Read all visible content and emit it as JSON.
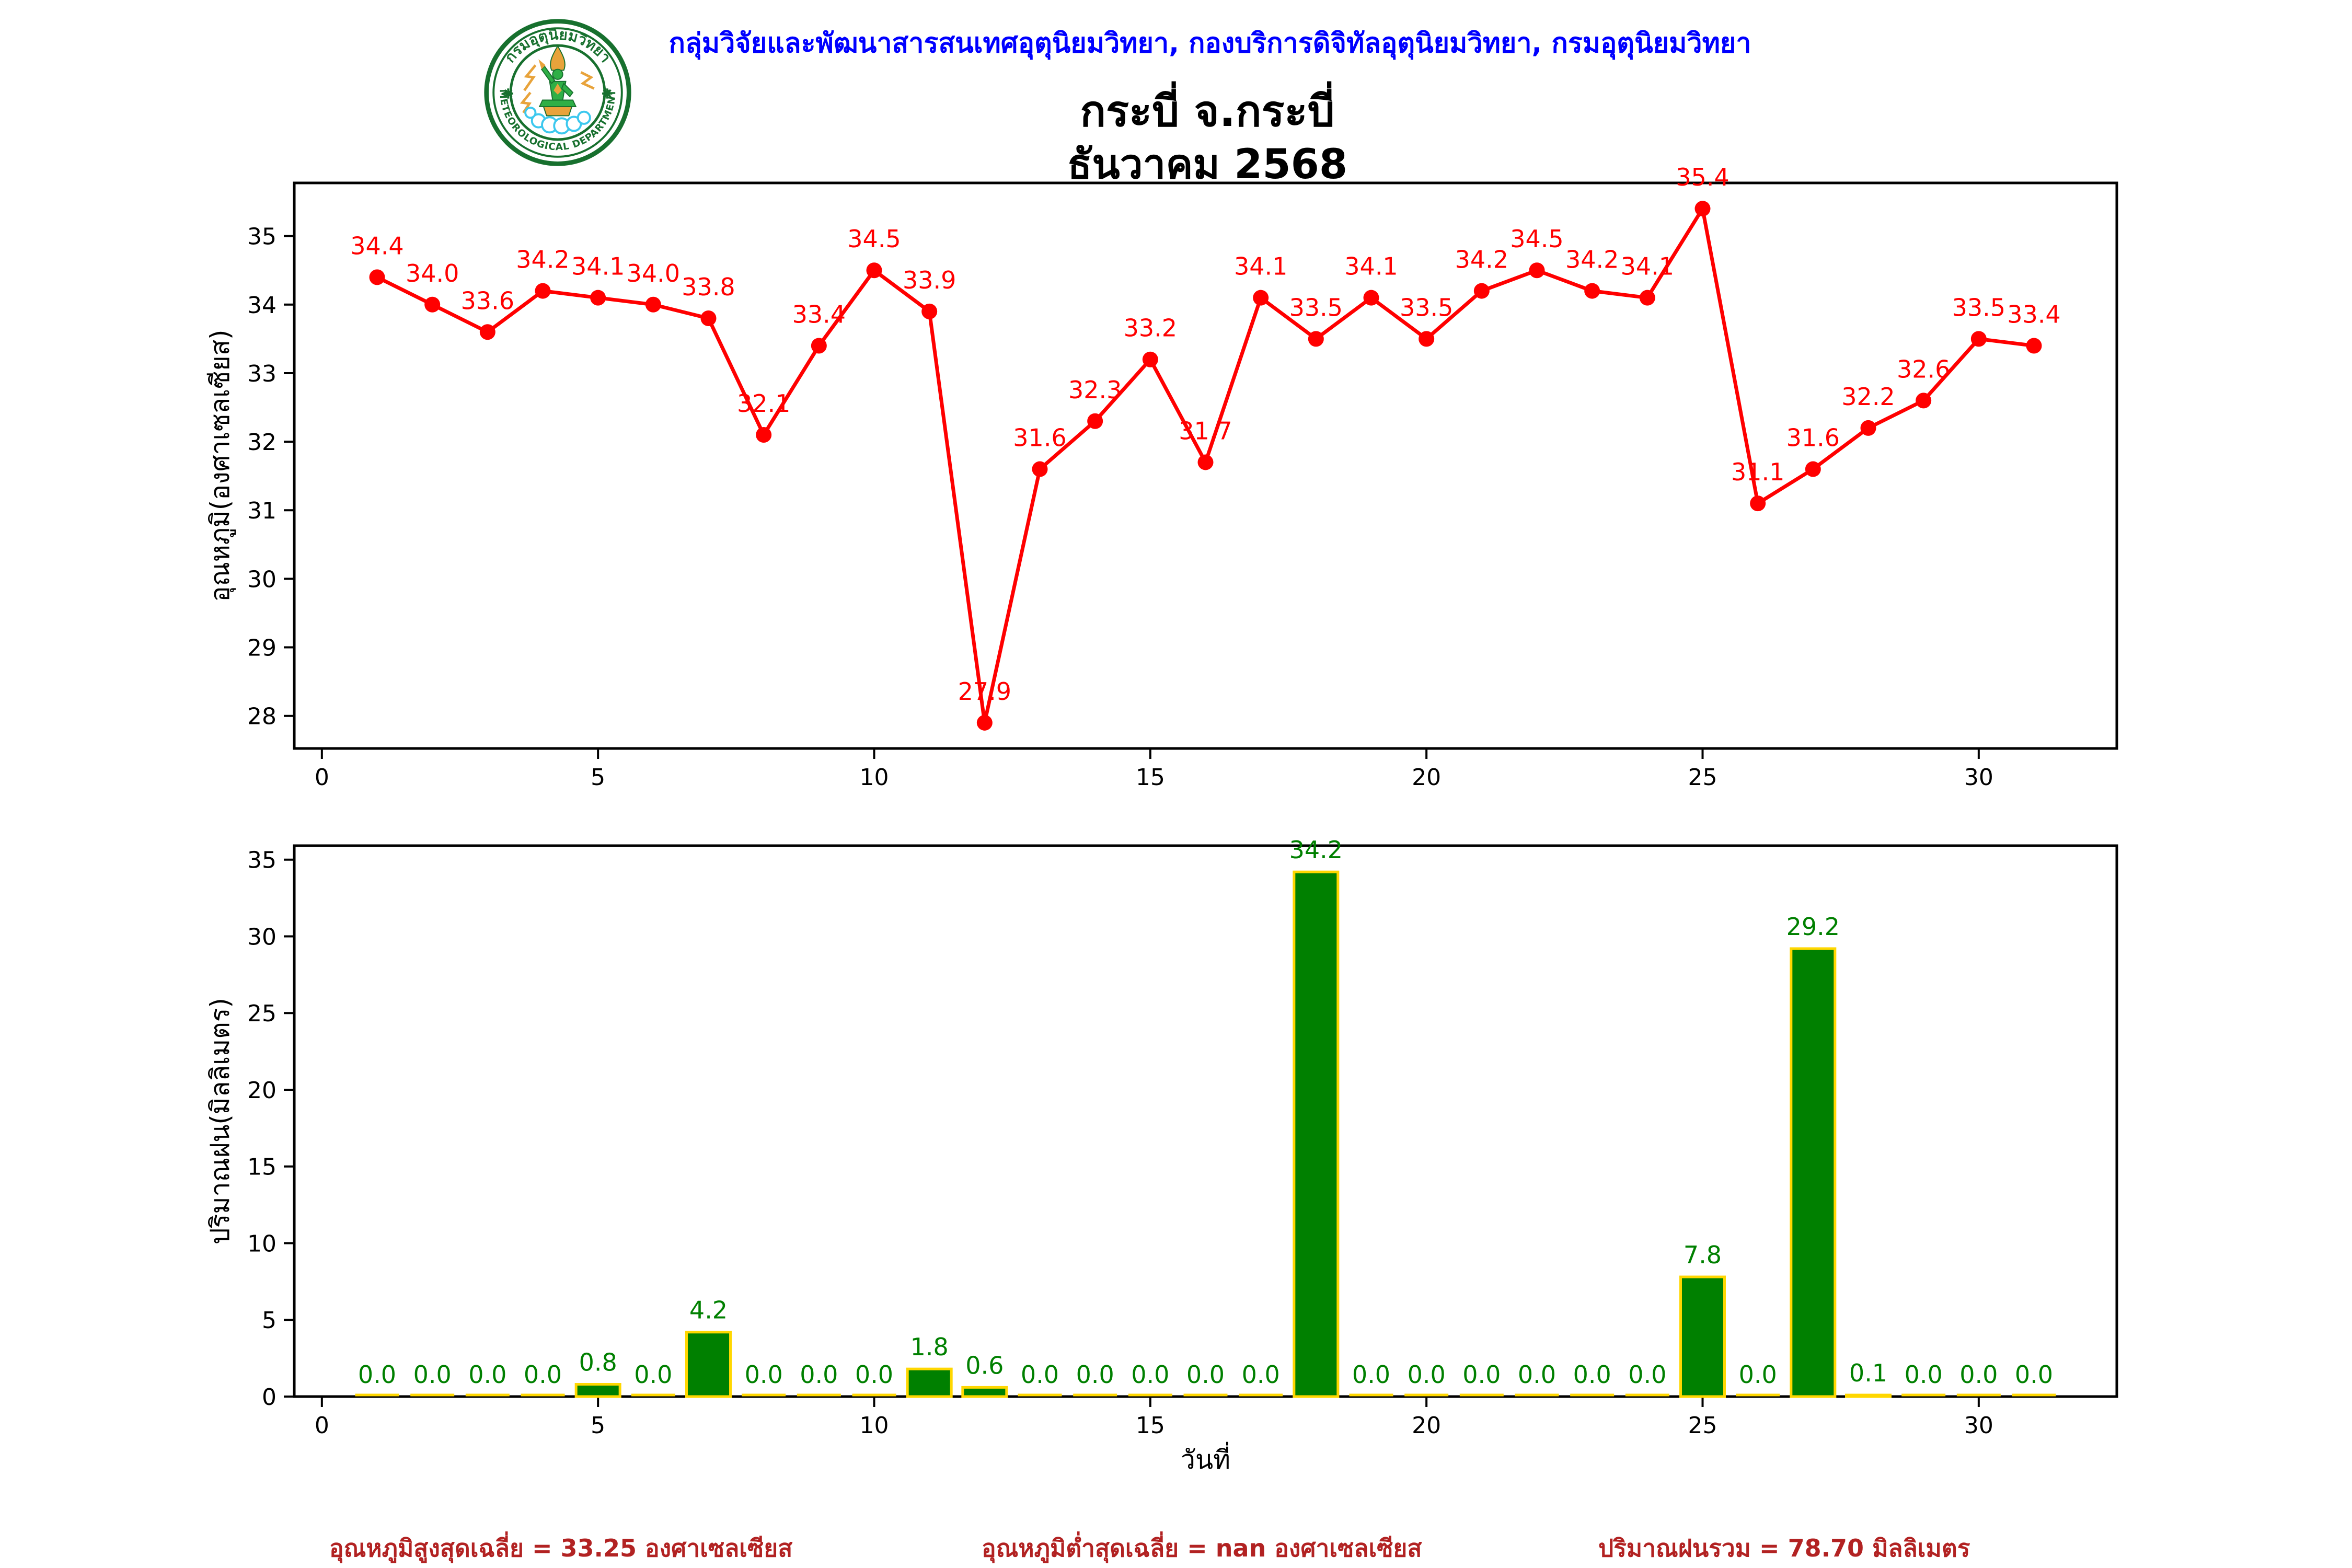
{
  "header": {
    "org_line": "กลุ่มวิจัยและพัฒนาสารสนเทศอุตุนิยมวิทยา, กองบริการดิจิทัลอุตุนิยมวิทยา, กรมอุตุนิยมวิทยา",
    "title_line1": "กระบี่ จ.กระบี่",
    "title_line2": "ธันวาคม 2568"
  },
  "logo": {
    "thai_arc_text": "กรมอุตุนิยมวิทยา",
    "english_arc_text": "METEOROLOGICAL DEPARTMENT"
  },
  "summary": {
    "avg_max_temp": "อุณหภูมิสูงสุดเฉลี่ย = 33.25 องศาเซลเซียส",
    "avg_min_temp": "อุณหภูมิต่ำสุดเฉลี่ย = nan องศาเซลเซียส",
    "total_rain": "ปริมาณฝนรวม = 78.70 มิลลิเมตร"
  },
  "colors": {
    "temp_line": "#ff0000",
    "temp_label": "#ff0000",
    "rain_bar_fill": "#008000",
    "rain_bar_edge": "#ffd700",
    "rain_label": "#008000",
    "header_text": "#0000ff",
    "summary_text": "#b22222",
    "axis": "#000000",
    "seal_green": "#17702e",
    "seal_gold": "#e8a33b",
    "seal_cloud": "#3cc8ee"
  },
  "chart_data": [
    {
      "type": "line",
      "name": "daily-max-temperature",
      "x": [
        1,
        2,
        3,
        4,
        5,
        6,
        7,
        8,
        9,
        10,
        11,
        12,
        13,
        14,
        15,
        16,
        17,
        18,
        19,
        20,
        21,
        22,
        23,
        24,
        25,
        26,
        27,
        28,
        29,
        30,
        31
      ],
      "values": [
        34.4,
        34.0,
        33.6,
        34.2,
        34.1,
        34.0,
        33.8,
        32.1,
        33.4,
        34.5,
        33.9,
        27.9,
        31.6,
        32.3,
        33.2,
        31.7,
        34.1,
        33.5,
        34.1,
        33.5,
        34.2,
        34.5,
        34.2,
        34.1,
        35.4,
        31.1,
        31.6,
        32.2,
        32.6,
        33.5,
        33.4
      ],
      "xlabel": "",
      "ylabel": "อุณหภูมิ(องศาเซลเซียส)",
      "xlim": [
        -0.5,
        32.5
      ],
      "ylim": [
        27.525,
        35.775
      ],
      "xticks": [
        0,
        5,
        10,
        15,
        20,
        25,
        30
      ],
      "yticks": [
        28,
        29,
        30,
        31,
        32,
        33,
        34,
        35
      ],
      "grid": false,
      "legend": null,
      "color": "#ff0000",
      "label_color": "#ff0000"
    },
    {
      "type": "bar",
      "name": "daily-rainfall",
      "x": [
        1,
        2,
        3,
        4,
        5,
        6,
        7,
        8,
        9,
        10,
        11,
        12,
        13,
        14,
        15,
        16,
        17,
        18,
        19,
        20,
        21,
        22,
        23,
        24,
        25,
        26,
        27,
        28,
        29,
        30,
        31
      ],
      "values": [
        0.0,
        0.0,
        0.0,
        0.0,
        0.8,
        0.0,
        4.2,
        0.0,
        0.0,
        0.0,
        1.8,
        0.6,
        0.0,
        0.0,
        0.0,
        0.0,
        0.0,
        34.2,
        0.0,
        0.0,
        0.0,
        0.0,
        0.0,
        0.0,
        7.8,
        0.0,
        29.2,
        0.1,
        0.0,
        0.0,
        0.0
      ],
      "xlabel": "วันที่",
      "ylabel": "ปริมาณฝน(มิลลิเมตร)",
      "xlim": [
        -0.5,
        32.5
      ],
      "ylim": [
        0,
        35.91
      ],
      "xticks": [
        0,
        5,
        10,
        15,
        20,
        25,
        30
      ],
      "yticks": [
        0,
        5,
        10,
        15,
        20,
        25,
        30,
        35
      ],
      "grid": false,
      "legend": null,
      "color": "#008000",
      "edge_color": "#ffd700",
      "label_color": "#008000"
    }
  ]
}
